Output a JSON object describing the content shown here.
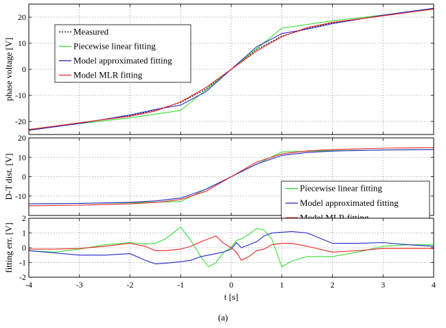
{
  "caption": "(a)",
  "chart_data": [
    {
      "type": "line",
      "ylabel": "phase voltage [V]",
      "xlabel": "",
      "xlim": [
        -4,
        4
      ],
      "ylim": [
        -25,
        25
      ],
      "yticks": [
        -20,
        -10,
        0,
        10,
        20
      ],
      "ytick_labels": [
        "-20",
        "-10",
        "0",
        "10",
        "20"
      ],
      "grid": true,
      "legend_position": "top-left",
      "series": [
        {
          "name": "Measured",
          "color": "#000000",
          "dash": "dotted",
          "x": [
            -4,
            -3,
            -2,
            -1.5,
            -1,
            -0.5,
            0,
            0.5,
            1,
            1.5,
            2,
            3,
            4
          ],
          "y": [
            -23.2,
            -20.6,
            -17.8,
            -15.6,
            -12.7,
            -7.6,
            0,
            7.6,
            12.7,
            15.6,
            17.8,
            20.6,
            23.2
          ]
        },
        {
          "name": "Piecewise linear fitting",
          "color": "#33dd33",
          "dash": "solid",
          "x": [
            -4,
            -2,
            -1,
            0,
            1,
            2,
            4
          ],
          "y": [
            -23.0,
            -18.6,
            -15.8,
            0,
            15.8,
            18.6,
            23.0
          ]
        },
        {
          "name": "Model approximated fitting",
          "color": "#2222cc",
          "dash": "solid",
          "x": [
            -4,
            -3,
            -2,
            -1.5,
            -1,
            -0.5,
            0,
            0.5,
            1,
            1.5,
            2,
            3,
            4
          ],
          "y": [
            -23.4,
            -20.8,
            -17.5,
            -15.4,
            -13.7,
            -8.6,
            0,
            8.6,
            13.7,
            15.4,
            17.5,
            20.8,
            23.4
          ]
        },
        {
          "name": "Model MLR fitting",
          "color": "#ee2222",
          "dash": "solid",
          "x": [
            -4,
            -3,
            -2,
            -1.5,
            -1,
            -0.5,
            0,
            0.5,
            1,
            1.5,
            2,
            3,
            4
          ],
          "y": [
            -23.1,
            -20.5,
            -18.0,
            -16.0,
            -12.5,
            -7.0,
            0,
            7.0,
            12.5,
            16.0,
            18.0,
            20.5,
            23.1
          ]
        }
      ]
    },
    {
      "type": "line",
      "ylabel": "D-T dist. [V]",
      "xlabel": "",
      "xlim": [
        -4,
        4
      ],
      "ylim": [
        -20,
        20
      ],
      "yticks": [
        -10,
        0,
        10,
        20
      ],
      "ytick_labels": [
        "-10",
        "0",
        "10",
        "20"
      ],
      "grid": true,
      "legend_position": "bottom-right",
      "series": [
        {
          "name": "Piecewise linear fitting",
          "color": "#33dd33",
          "dash": "solid",
          "x": [
            -4,
            -2,
            -1,
            0,
            1,
            2,
            4
          ],
          "y": [
            -14.0,
            -13.5,
            -12.8,
            0,
            12.8,
            13.5,
            14.0
          ]
        },
        {
          "name": "Model approximated fitting",
          "color": "#2222cc",
          "dash": "solid",
          "x": [
            -4,
            -3,
            -2,
            -1.5,
            -1,
            -0.5,
            0,
            0.5,
            1,
            1.5,
            2,
            3,
            4
          ],
          "y": [
            -14.0,
            -13.8,
            -13.2,
            -12.5,
            -11.0,
            -6.5,
            0,
            6.5,
            11.0,
            12.5,
            13.2,
            13.8,
            14.0
          ]
        },
        {
          "name": "Model MLR fitting",
          "color": "#ee2222",
          "dash": "solid",
          "x": [
            -4,
            -3,
            -2,
            -1.5,
            -1,
            -0.5,
            0,
            0.5,
            1,
            1.5,
            2,
            3,
            4
          ],
          "y": [
            -15.0,
            -14.7,
            -14.0,
            -13.3,
            -11.8,
            -7.5,
            0,
            7.5,
            11.8,
            13.3,
            14.0,
            14.7,
            15.0
          ]
        }
      ]
    },
    {
      "type": "line",
      "ylabel": "fitting err. [V]",
      "xlabel": "t [s]",
      "xlim": [
        -4,
        4
      ],
      "ylim": [
        -2,
        2
      ],
      "xticks": [
        -4,
        -3,
        -2,
        -1,
        0,
        1,
        2,
        3,
        4
      ],
      "xtick_labels": [
        "-4",
        "-3",
        "-2",
        "-1",
        "0",
        "1",
        "2",
        "3",
        "4"
      ],
      "yticks": [
        -2,
        -1,
        0,
        1,
        2
      ],
      "ytick_labels": [
        "-2",
        "-1",
        "0",
        "1",
        "2"
      ],
      "grid": true,
      "series": [
        {
          "name": "Piecewise linear fitting",
          "color": "#33dd33",
          "dash": "solid",
          "x": [
            -4,
            -3.5,
            -3,
            -2.5,
            -2,
            -1.7,
            -1.5,
            -1.3,
            -1.0,
            -0.8,
            -0.6,
            -0.45,
            -0.3,
            -0.15,
            0,
            0.1,
            0.2,
            0.35,
            0.5,
            0.65,
            0.8,
            1.0,
            1.2,
            1.5,
            2,
            2.5,
            3,
            3.5,
            4
          ],
          "y": [
            -0.2,
            -0.3,
            -0.1,
            0.2,
            0.35,
            0.25,
            0.3,
            0.6,
            1.4,
            0.5,
            -0.6,
            -1.3,
            -1.0,
            -0.3,
            0,
            0.5,
            0.6,
            0.9,
            1.3,
            1.2,
            0.6,
            -1.3,
            -0.9,
            -0.6,
            -0.6,
            -0.3,
            0.1,
            0.2,
            0.2
          ]
        },
        {
          "name": "Model approximated fitting",
          "color": "#2222cc",
          "dash": "solid",
          "x": [
            -4,
            -3.5,
            -3,
            -2.5,
            -2,
            -1.7,
            -1.5,
            -1.3,
            -1.0,
            -0.8,
            -0.6,
            -0.45,
            -0.3,
            -0.15,
            0,
            0.1,
            0.2,
            0.35,
            0.5,
            0.65,
            0.8,
            1.0,
            1.2,
            1.5,
            2,
            2.5,
            3,
            3.5,
            4
          ],
          "y": [
            -0.2,
            -0.35,
            -0.5,
            -0.5,
            -0.4,
            -0.85,
            -1.1,
            -1.05,
            -0.95,
            -0.85,
            -0.6,
            -0.5,
            -0.4,
            -0.3,
            -0.1,
            0.35,
            0.0,
            0.2,
            0.4,
            0.8,
            1.0,
            1.05,
            1.1,
            1.0,
            0.3,
            0.3,
            0.35,
            0.2,
            0.1
          ]
        },
        {
          "name": "Model MLR fitting",
          "color": "#ee2222",
          "dash": "solid",
          "x": [
            -4,
            -3.5,
            -3,
            -2.5,
            -2,
            -1.7,
            -1.5,
            -1.3,
            -1.0,
            -0.8,
            -0.6,
            -0.45,
            -0.3,
            -0.15,
            0,
            0.1,
            0.2,
            0.35,
            0.5,
            0.65,
            0.8,
            1.0,
            1.2,
            1.5,
            2,
            2.5,
            3,
            3.5,
            4
          ],
          "y": [
            -0.1,
            -0.1,
            -0.05,
            0.1,
            0.3,
            0.1,
            -0.2,
            -0.2,
            -0.1,
            0.1,
            0.4,
            0.6,
            0.8,
            0.3,
            0,
            -0.3,
            -0.85,
            -0.6,
            -0.2,
            -0.1,
            0.2,
            0.3,
            0.3,
            0.1,
            -0.3,
            -0.2,
            -0.05,
            -0.05,
            -0.05
          ]
        }
      ]
    }
  ]
}
